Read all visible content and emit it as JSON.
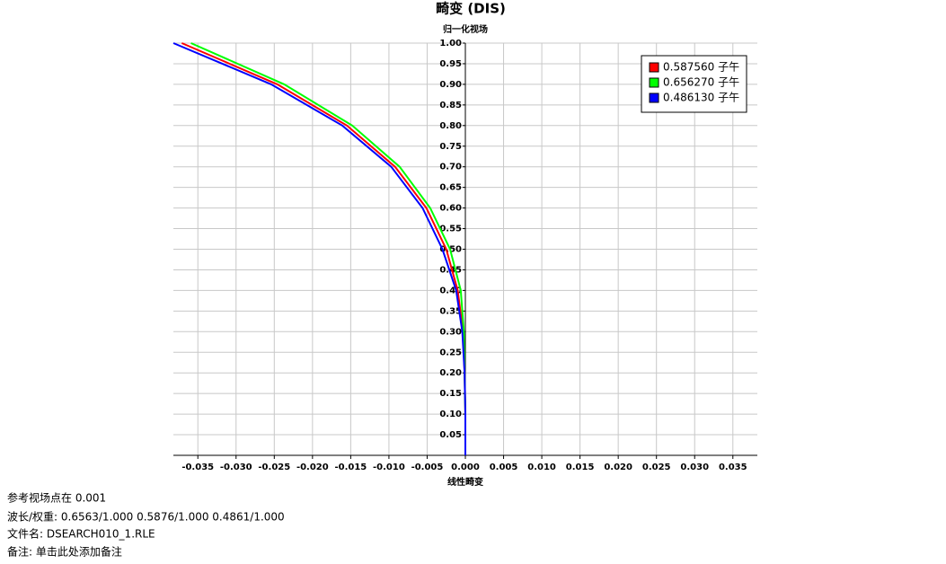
{
  "chart_data": {
    "type": "line",
    "title": "畸变 (DIS)",
    "y_label": "归一化视场",
    "x_label": "线性畸变",
    "y": [
      0,
      0.1,
      0.2,
      0.3,
      0.4,
      0.5,
      0.6,
      0.7,
      0.8,
      0.9,
      1.0
    ],
    "series": [
      {
        "name": "0.587560 子午",
        "color": "#ff0000",
        "values": [
          0,
          0,
          -0.0001,
          -0.0003,
          -0.001,
          -0.0025,
          -0.0051,
          -0.0092,
          -0.0155,
          -0.0246,
          -0.0371
        ]
      },
      {
        "name": "0.656270 子午",
        "color": "#00ff00",
        "values": [
          0,
          0,
          -0.0001,
          -0.0002,
          -0.0006,
          -0.002,
          -0.0046,
          -0.0086,
          -0.0148,
          -0.0237,
          -0.0359
        ]
      },
      {
        "name": "0.486130 子午",
        "color": "#0000ff",
        "values": [
          0,
          0,
          -0.0001,
          -0.0004,
          -0.0012,
          -0.003,
          -0.0056,
          -0.0097,
          -0.0161,
          -0.0254,
          -0.0382
        ]
      }
    ],
    "xlim": [
      -0.0382,
      0.0382
    ],
    "ylim": [
      0,
      1
    ],
    "xticks": [
      -0.035,
      {
        "value": -0.03,
        "label": "-0.030"
      },
      -0.025,
      {
        "value": -0.02,
        "label": "-0.020"
      },
      -0.015,
      {
        "value": -0.01,
        "label": "-0.010"
      },
      -0.005,
      {
        "value": 0,
        "label": "0.000"
      },
      0.005,
      {
        "value": 0.01,
        "label": "0.010"
      },
      0.015,
      {
        "value": 0.02,
        "label": "0.020"
      },
      0.025,
      {
        "value": 0.03,
        "label": "0.030"
      },
      0.035
    ],
    "yticks": [
      0.05,
      {
        "value": 0.1,
        "label": "0.10"
      },
      0.15,
      {
        "value": 0.2,
        "label": "0.20"
      },
      0.25,
      {
        "value": 0.3,
        "label": "0.30"
      },
      0.35,
      {
        "value": 0.4,
        "label": "0.40"
      },
      0.45,
      {
        "value": 0.5,
        "label": "0.50"
      },
      0.55,
      {
        "value": 0.6,
        "label": "0.60"
      },
      0.65,
      {
        "value": 0.7,
        "label": "0.70"
      },
      0.75,
      {
        "value": 0.8,
        "label": "0.80"
      },
      0.85,
      {
        "value": 0.9,
        "label": "0.90"
      },
      0.95,
      {
        "value": 1,
        "label": "1.00"
      }
    ],
    "grid": true,
    "legend": "upper right"
  },
  "notes": [
    "参考视场点在  0.001",
    "波长/权重:  0.6563/1.000  0.5876/1.000  0.4861/1.000",
    "文件名:  DSEARCH010_1.RLE",
    "备注:  单击此处添加备注"
  ]
}
